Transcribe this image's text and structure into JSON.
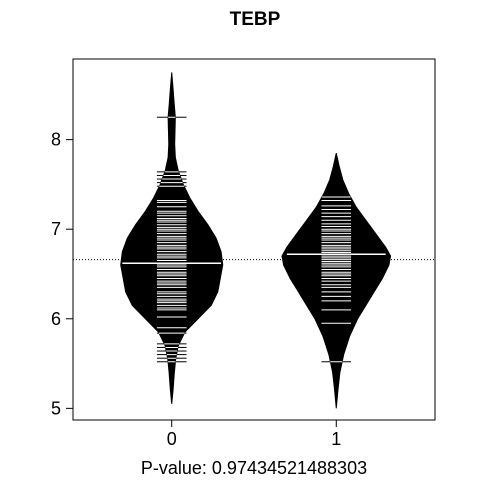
{
  "chart_data": {
    "type": "beanplot",
    "title": "TEBP",
    "xlabel": "P-value: 0.97434521488303",
    "ylabel": "",
    "categories": [
      "0",
      "1"
    ],
    "xlim": [
      -0.6,
      1.6
    ],
    "ylim": [
      4.87,
      8.9
    ],
    "y_ticks": [
      5,
      6,
      7,
      8
    ],
    "overall_mean": 6.66,
    "grid": false,
    "legend": "none",
    "fill_color": "#000000",
    "line_color": "#ffffff",
    "series": [
      {
        "category": "0",
        "mean": 6.62,
        "density": [
          [
            5.05,
            0.0
          ],
          [
            5.2,
            0.008
          ],
          [
            5.4,
            0.016
          ],
          [
            5.55,
            0.024
          ],
          [
            5.7,
            0.04
          ],
          [
            5.85,
            0.08
          ],
          [
            6.0,
            0.16
          ],
          [
            6.15,
            0.24
          ],
          [
            6.3,
            0.28
          ],
          [
            6.45,
            0.295
          ],
          [
            6.6,
            0.31
          ],
          [
            6.75,
            0.3
          ],
          [
            6.9,
            0.27
          ],
          [
            7.05,
            0.22
          ],
          [
            7.2,
            0.16
          ],
          [
            7.35,
            0.11
          ],
          [
            7.5,
            0.07
          ],
          [
            7.65,
            0.04
          ],
          [
            7.8,
            0.022
          ],
          [
            7.95,
            0.018
          ],
          [
            8.1,
            0.02
          ],
          [
            8.25,
            0.022
          ],
          [
            8.4,
            0.015
          ],
          [
            8.55,
            0.009
          ],
          [
            8.75,
            0.0
          ]
        ],
        "observations": [
          5.52,
          5.56,
          5.6,
          5.64,
          5.68,
          5.72,
          5.84,
          5.9,
          6.02,
          6.1,
          6.12,
          6.15,
          6.18,
          6.2,
          6.22,
          6.25,
          6.28,
          6.3,
          6.35,
          6.38,
          6.4,
          6.42,
          6.45,
          6.48,
          6.5,
          6.52,
          6.55,
          6.58,
          6.6,
          6.62,
          6.65,
          6.68,
          6.7,
          6.72,
          6.75,
          6.78,
          6.8,
          6.82,
          6.85,
          6.88,
          6.9,
          6.92,
          6.95,
          6.98,
          7.0,
          7.02,
          7.05,
          7.08,
          7.1,
          7.12,
          7.15,
          7.18,
          7.2,
          7.25,
          7.3,
          7.32,
          7.48,
          7.52,
          7.56,
          7.6,
          7.64,
          8.25
        ]
      },
      {
        "category": "1",
        "mean": 6.72,
        "density": [
          [
            5.0,
            0.0
          ],
          [
            5.2,
            0.01
          ],
          [
            5.4,
            0.022
          ],
          [
            5.6,
            0.045
          ],
          [
            5.8,
            0.08
          ],
          [
            6.0,
            0.13
          ],
          [
            6.15,
            0.18
          ],
          [
            6.3,
            0.23
          ],
          [
            6.45,
            0.28
          ],
          [
            6.6,
            0.32
          ],
          [
            6.7,
            0.33
          ],
          [
            6.8,
            0.3
          ],
          [
            6.95,
            0.24
          ],
          [
            7.1,
            0.18
          ],
          [
            7.25,
            0.12
          ],
          [
            7.4,
            0.075
          ],
          [
            7.55,
            0.04
          ],
          [
            7.7,
            0.018
          ],
          [
            7.85,
            0.0
          ]
        ],
        "observations": [
          5.52,
          5.95,
          6.1,
          6.2,
          6.25,
          6.3,
          6.35,
          6.38,
          6.42,
          6.45,
          6.48,
          6.5,
          6.52,
          6.55,
          6.58,
          6.6,
          6.62,
          6.64,
          6.66,
          6.68,
          6.7,
          6.72,
          6.74,
          6.76,
          6.78,
          6.8,
          6.82,
          6.85,
          6.88,
          6.9,
          6.92,
          6.95,
          6.98,
          7.0,
          7.03,
          7.06,
          7.1,
          7.14,
          7.18,
          7.22,
          7.26,
          7.32,
          7.36
        ]
      }
    ]
  }
}
